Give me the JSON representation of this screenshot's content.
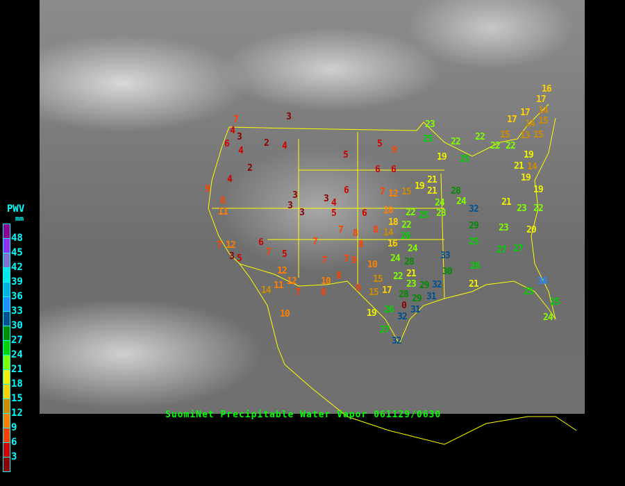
{
  "title": "SuomiNet Precipitable Water Vapor 061129/0630",
  "legend": {
    "title": "PWV",
    "units": "mm",
    "ticks": [
      "48",
      "45",
      "42",
      "39",
      "36",
      "33",
      "30",
      "27",
      "24",
      "21",
      "18",
      "15",
      "12",
      "9",
      "6",
      "3"
    ],
    "colors": [
      "#900090",
      "#9030f0",
      "#8070d0",
      "#00e8e8",
      "#00b0e0",
      "#2090ff",
      "#005090",
      "#008c00",
      "#00d000",
      "#80ff00",
      "#f0f000",
      "#ffd000",
      "#d08c00",
      "#ff8000",
      "#ff4000",
      "#d00000",
      "#8b0000"
    ]
  },
  "border_color": "#ffff00",
  "stations": [
    7,
    4,
    3,
    6,
    4,
    2,
    4,
    3,
    2,
    4,
    9,
    8,
    11,
    5,
    6,
    3,
    3,
    3,
    3,
    4,
    5,
    6,
    7,
    8,
    8,
    7,
    6,
    7,
    12,
    3,
    5,
    7,
    5,
    12,
    14,
    11,
    12,
    7,
    10,
    8,
    7,
    7,
    9,
    8,
    9,
    10,
    5,
    9,
    6,
    6,
    7,
    12,
    15,
    19,
    21,
    10,
    22,
    25,
    23,
    18,
    22,
    8,
    14,
    26,
    16,
    24,
    10,
    24,
    28,
    28,
    24,
    24,
    32,
    29,
    25,
    26,
    33,
    30,
    22,
    21,
    23,
    15,
    15,
    17,
    28,
    0,
    29,
    32,
    31,
    26,
    31,
    32,
    19,
    29,
    21,
    16,
    17,
    14,
    15,
    17,
    17,
    14,
    13,
    15,
    23,
    25,
    22,
    22,
    15,
    22,
    22,
    19,
    25,
    19,
    21,
    14,
    19,
    19,
    21,
    21,
    23,
    22,
    23,
    20,
    27,
    27,
    36,
    25,
    25,
    24,
    27,
    32
  ]
}
